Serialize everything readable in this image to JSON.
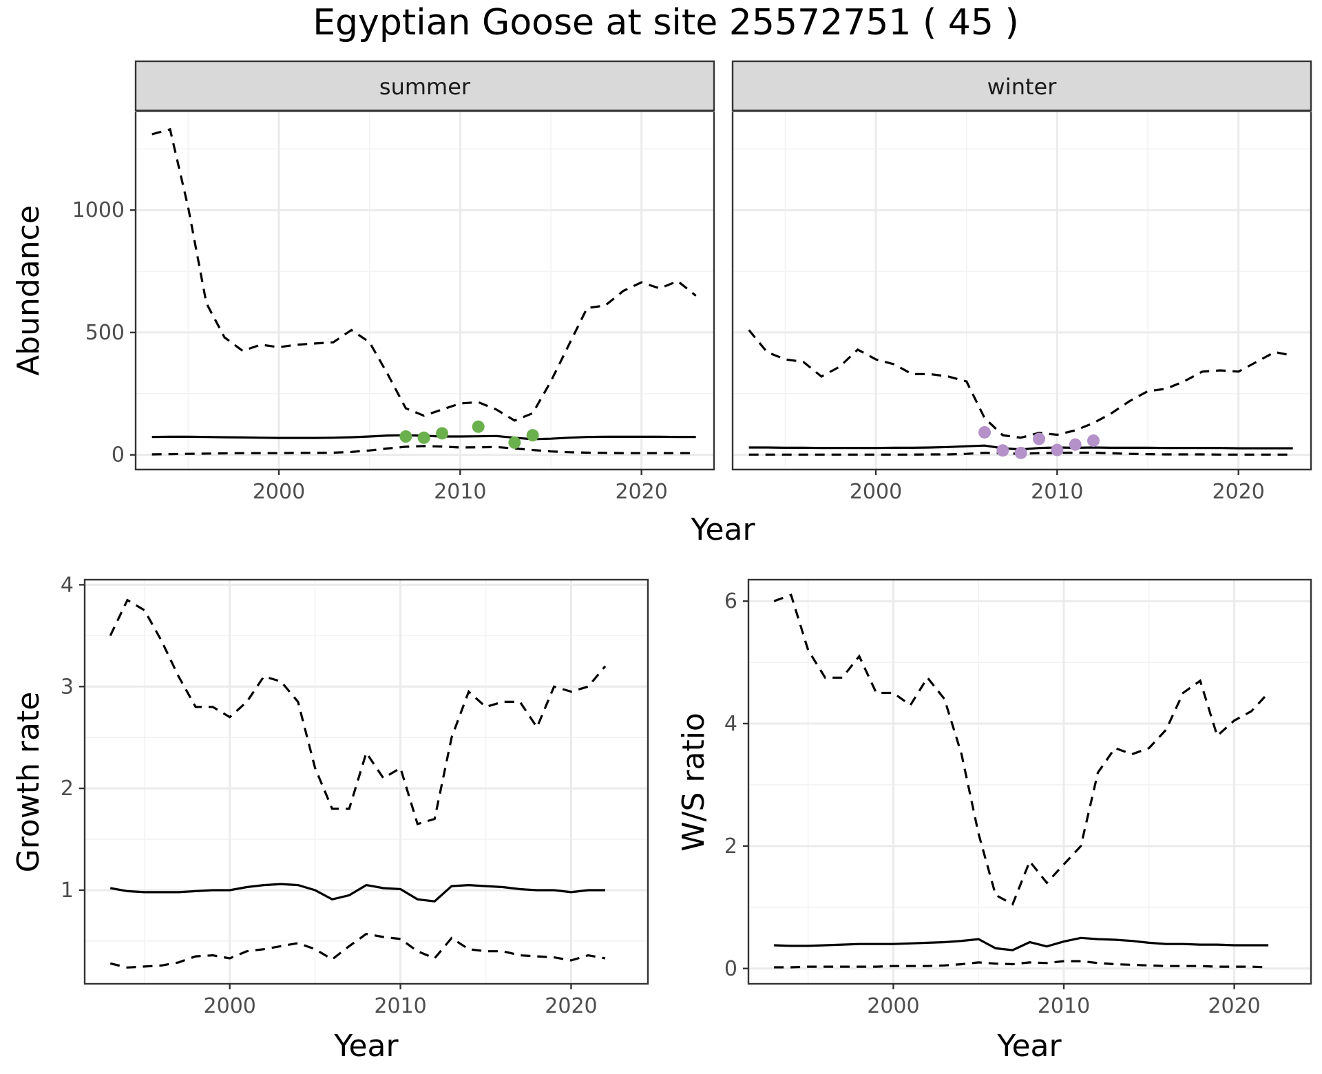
{
  "figure": {
    "title": "Egyptian Goose at site 25572751 ( 45 )"
  },
  "chart_data": [
    {
      "type": "line",
      "id": "abundance",
      "xlabel": "Year",
      "ylabel": "Abundance",
      "xlim": [
        1992.1,
        2024.0
      ],
      "ylim": [
        -60,
        1400
      ],
      "xticks": [
        2000,
        2010,
        2020
      ],
      "yticks": [
        0,
        500,
        1000
      ],
      "grid": true,
      "facets": [
        {
          "label": "summer",
          "point_color": "#6ab04c",
          "series": [
            {
              "style": "solid",
              "x": [
                1993,
                1994,
                1995,
                1996,
                1997,
                1998,
                1999,
                2000,
                2001,
                2002,
                2003,
                2004,
                2005,
                2006,
                2007,
                2008,
                2009,
                2010,
                2011,
                2012,
                2013,
                2014,
                2015,
                2016,
                2017,
                2018,
                2019,
                2020,
                2021,
                2022,
                2023
              ],
              "values": [
                73,
                74,
                74,
                73,
                72,
                71,
                70,
                69,
                69,
                69,
                70,
                72,
                75,
                79,
                80,
                78,
                75,
                75,
                76,
                77,
                70,
                64,
                66,
                70,
                73,
                74,
                74,
                74,
                74,
                73,
                73
              ]
            },
            {
              "style": "dashed",
              "x": [
                1993,
                1994,
                1995,
                1996,
                1997,
                1998,
                1999,
                2000,
                2001,
                2002,
                2003,
                2004,
                2005,
                2006,
                2007,
                2008,
                2009,
                2010,
                2011,
                2012,
                2013,
                2014,
                2015,
                2016,
                2017,
                2018,
                2019,
                2020,
                2021,
                2022,
                2023
              ],
              "values": [
                1310,
                1330,
                1010,
                620,
                480,
                425,
                450,
                440,
                450,
                455,
                460,
                510,
                460,
                330,
                190,
                160,
                185,
                210,
                215,
                185,
                140,
                170,
                300,
                450,
                600,
                610,
                670,
                705,
                680,
                710,
                650
              ]
            },
            {
              "style": "dashed",
              "x": [
                1993,
                1994,
                1995,
                1996,
                1997,
                1998,
                1999,
                2000,
                2001,
                2002,
                2003,
                2004,
                2005,
                2006,
                2007,
                2008,
                2009,
                2010,
                2011,
                2012,
                2013,
                2014,
                2015,
                2016,
                2017,
                2018,
                2019,
                2020,
                2021,
                2022,
                2023
              ],
              "values": [
                2,
                3,
                4,
                5,
                6,
                7,
                7,
                7,
                8,
                8,
                9,
                12,
                18,
                26,
                33,
                36,
                34,
                30,
                31,
                32,
                26,
                20,
                14,
                11,
                9,
                8,
                7,
                7,
                7,
                7,
                7
              ]
            }
          ],
          "points": {
            "x": [
              2007,
              2008,
              2009,
              2011,
              2013,
              2014
            ],
            "y": [
              75,
              70,
              88,
              115,
              50,
              80
            ]
          }
        },
        {
          "label": "winter",
          "point_color": "#b491c8",
          "series": [
            {
              "style": "solid",
              "x": [
                1993,
                1994,
                1995,
                1996,
                1997,
                1998,
                1999,
                2000,
                2001,
                2002,
                2003,
                2004,
                2005,
                2006,
                2007,
                2008,
                2009,
                2010,
                2011,
                2012,
                2013,
                2014,
                2015,
                2016,
                2017,
                2018,
                2019,
                2020,
                2021,
                2022,
                2023
              ],
              "values": [
                30,
                30,
                29,
                29,
                28,
                28,
                28,
                28,
                29,
                29,
                30,
                32,
                35,
                38,
                27,
                22,
                28,
                30,
                29,
                30,
                29,
                29,
                29,
                28,
                28,
                28,
                28,
                27,
                27,
                27,
                27
              ]
            },
            {
              "style": "dashed",
              "x": [
                1993,
                1994,
                1995,
                1996,
                1997,
                1998,
                1999,
                2000,
                2001,
                2002,
                2003,
                2004,
                2005,
                2006,
                2007,
                2008,
                2009,
                2010,
                2011,
                2012,
                2013,
                2014,
                2015,
                2016,
                2017,
                2018,
                2019,
                2020,
                2021,
                2022,
                2023
              ],
              "values": [
                510,
                420,
                390,
                380,
                320,
                360,
                430,
                390,
                370,
                330,
                330,
                320,
                300,
                150,
                80,
                70,
                90,
                82,
                100,
                130,
                170,
                220,
                260,
                270,
                300,
                340,
                345,
                340,
                380,
                420,
                405
              ]
            },
            {
              "style": "dashed",
              "x": [
                1993,
                1994,
                1995,
                1996,
                1997,
                1998,
                1999,
                2000,
                2001,
                2002,
                2003,
                2004,
                2005,
                2006,
                2007,
                2008,
                2009,
                2010,
                2011,
                2012,
                2013,
                2014,
                2015,
                2016,
                2017,
                2018,
                2019,
                2020,
                2021,
                2022,
                2023
              ],
              "values": [
                1,
                1,
                1,
                1,
                1,
                1,
                1,
                1,
                1,
                1,
                2,
                2,
                4,
                8,
                6,
                4,
                7,
                8,
                9,
                9,
                6,
                4,
                3,
                2,
                2,
                2,
                1,
                1,
                1,
                1,
                1
              ]
            }
          ],
          "points": {
            "x": [
              2006,
              2007,
              2008,
              2009,
              2010,
              2011,
              2012
            ],
            "y": [
              92,
              18,
              8,
              65,
              20,
              42,
              58
            ]
          }
        }
      ]
    },
    {
      "type": "line",
      "id": "growth",
      "xlabel": "Year",
      "ylabel": "Growth rate",
      "xlim": [
        1991.5,
        2024.5
      ],
      "ylim": [
        0.08,
        4.05
      ],
      "xticks": [
        2000,
        2010,
        2020
      ],
      "yticks": [
        1,
        2,
        3,
        4
      ],
      "grid": true,
      "series": [
        {
          "style": "solid",
          "x": [
            1993,
            1994,
            1995,
            1996,
            1997,
            1998,
            1999,
            2000,
            2001,
            2002,
            2003,
            2004,
            2005,
            2006,
            2007,
            2008,
            2009,
            2010,
            2011,
            2012,
            2013,
            2014,
            2015,
            2016,
            2017,
            2018,
            2019,
            2020,
            2021,
            2022
          ],
          "values": [
            1.02,
            0.99,
            0.98,
            0.98,
            0.98,
            0.99,
            1.0,
            1.0,
            1.03,
            1.05,
            1.06,
            1.05,
            1.0,
            0.91,
            0.95,
            1.05,
            1.02,
            1.01,
            0.91,
            0.89,
            1.04,
            1.05,
            1.04,
            1.03,
            1.01,
            1.0,
            1.0,
            0.98,
            1.0,
            1.0
          ]
        },
        {
          "style": "dashed",
          "x": [
            1993,
            1994,
            1995,
            1996,
            1997,
            1998,
            1999,
            2000,
            2001,
            2002,
            2003,
            2004,
            2005,
            2006,
            2007,
            2008,
            2009,
            2010,
            2011,
            2012,
            2013,
            2014,
            2015,
            2016,
            2017,
            2018,
            2019,
            2020,
            2021,
            2022
          ],
          "values": [
            3.5,
            3.85,
            3.75,
            3.45,
            3.1,
            2.8,
            2.8,
            2.7,
            2.85,
            3.1,
            3.05,
            2.85,
            2.2,
            1.8,
            1.8,
            2.35,
            2.1,
            2.2,
            1.65,
            1.7,
            2.5,
            2.95,
            2.8,
            2.85,
            2.85,
            2.6,
            3.0,
            2.95,
            3.0,
            3.2
          ]
        },
        {
          "style": "dashed",
          "x": [
            1993,
            1994,
            1995,
            1996,
            1997,
            1998,
            1999,
            2000,
            2001,
            2002,
            2003,
            2004,
            2005,
            2006,
            2007,
            2008,
            2009,
            2010,
            2011,
            2012,
            2013,
            2014,
            2015,
            2016,
            2017,
            2018,
            2019,
            2020,
            2021,
            2022
          ],
          "values": [
            0.28,
            0.24,
            0.25,
            0.26,
            0.29,
            0.35,
            0.36,
            0.33,
            0.4,
            0.42,
            0.45,
            0.48,
            0.42,
            0.32,
            0.45,
            0.57,
            0.54,
            0.52,
            0.4,
            0.33,
            0.53,
            0.42,
            0.4,
            0.4,
            0.36,
            0.35,
            0.34,
            0.31,
            0.36,
            0.33
          ]
        }
      ]
    },
    {
      "type": "line",
      "id": "ws",
      "xlabel": "Year",
      "ylabel": "W/S ratio",
      "xlim": [
        1991.5,
        2024.5
      ],
      "ylim": [
        -0.25,
        6.35
      ],
      "xticks": [
        2000,
        2010,
        2020
      ],
      "yticks": [
        0,
        2,
        4,
        6
      ],
      "grid": true,
      "series": [
        {
          "style": "solid",
          "x": [
            1993,
            1994,
            1995,
            1996,
            1997,
            1998,
            1999,
            2000,
            2001,
            2002,
            2003,
            2004,
            2005,
            2006,
            2007,
            2008,
            2009,
            2010,
            2011,
            2012,
            2013,
            2014,
            2015,
            2016,
            2017,
            2018,
            2019,
            2020,
            2021,
            2022
          ],
          "values": [
            0.38,
            0.37,
            0.37,
            0.38,
            0.39,
            0.4,
            0.4,
            0.4,
            0.41,
            0.42,
            0.43,
            0.45,
            0.48,
            0.33,
            0.3,
            0.43,
            0.36,
            0.44,
            0.5,
            0.48,
            0.47,
            0.45,
            0.42,
            0.4,
            0.4,
            0.39,
            0.39,
            0.38,
            0.38,
            0.38
          ]
        },
        {
          "style": "dashed",
          "x": [
            1993,
            1994,
            1995,
            1996,
            1997,
            1998,
            1999,
            2000,
            2001,
            2002,
            2003,
            2004,
            2005,
            2006,
            2007,
            2008,
            2009,
            2010,
            2011,
            2012,
            2013,
            2014,
            2015,
            2016,
            2017,
            2018,
            2019,
            2020,
            2021,
            2022
          ],
          "values": [
            6.0,
            6.1,
            5.2,
            4.75,
            4.75,
            5.1,
            4.5,
            4.5,
            4.3,
            4.75,
            4.4,
            3.5,
            2.2,
            1.2,
            1.05,
            1.75,
            1.4,
            1.7,
            2.0,
            3.2,
            3.6,
            3.5,
            3.6,
            3.9,
            4.5,
            4.7,
            3.8,
            4.05,
            4.2,
            4.5
          ]
        },
        {
          "style": "dashed",
          "x": [
            1993,
            1994,
            1995,
            1996,
            1997,
            1998,
            1999,
            2000,
            2001,
            2002,
            2003,
            2004,
            2005,
            2006,
            2007,
            2008,
            2009,
            2010,
            2011,
            2012,
            2013,
            2014,
            2015,
            2016,
            2017,
            2018,
            2019,
            2020,
            2021,
            2022
          ],
          "values": [
            0.02,
            0.02,
            0.03,
            0.03,
            0.03,
            0.03,
            0.03,
            0.04,
            0.04,
            0.04,
            0.05,
            0.07,
            0.1,
            0.08,
            0.07,
            0.1,
            0.09,
            0.12,
            0.12,
            0.09,
            0.07,
            0.06,
            0.05,
            0.04,
            0.04,
            0.04,
            0.03,
            0.03,
            0.03,
            0.02
          ]
        }
      ]
    }
  ]
}
